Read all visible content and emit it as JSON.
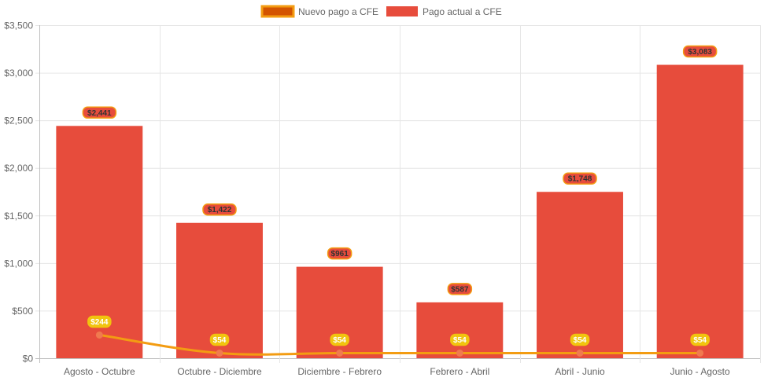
{
  "chart_data": {
    "type": "bar",
    "categories": [
      "Agosto - Octubre",
      "Octubre - Diciembre",
      "Diciembre - Febrero",
      "Febrero - Abril",
      "Abril - Junio",
      "Junio - Agosto"
    ],
    "series": [
      {
        "name": "Nuevo pago a CFE",
        "type": "line",
        "values": [
          244,
          54,
          54,
          54,
          54,
          54
        ],
        "labels": [
          "$244",
          "$54",
          "$54",
          "$54",
          "$54",
          "$54"
        ],
        "color": "#f39c12",
        "point_color": "#f07a4f",
        "legend_fill": "#d35400",
        "label_bg": "#f1c40f",
        "label_text_color": "#ffffff"
      },
      {
        "name": "Pago actual a CFE",
        "type": "bar",
        "values": [
          2441,
          1422,
          961,
          587,
          1748,
          3083
        ],
        "labels": [
          "$2,441",
          "$1,422",
          "$961",
          "$587",
          "$1,748",
          "$3,083"
        ],
        "color": "#e74c3c",
        "label_bg": "#e74c3c",
        "label_border": "#f39c12",
        "label_text_color": "#333333"
      }
    ],
    "ylim": [
      0,
      3500
    ],
    "yticks": [
      0,
      500,
      1000,
      1500,
      2000,
      2500,
      3000,
      3500
    ],
    "ytick_labels": [
      "$0",
      "$500",
      "$1,000",
      "$1,500",
      "$2,000",
      "$2,500",
      "$3,000",
      "$3,500"
    ],
    "grid": true,
    "legend_position": "top-center",
    "title": "",
    "xlabel": "",
    "ylabel": ""
  }
}
